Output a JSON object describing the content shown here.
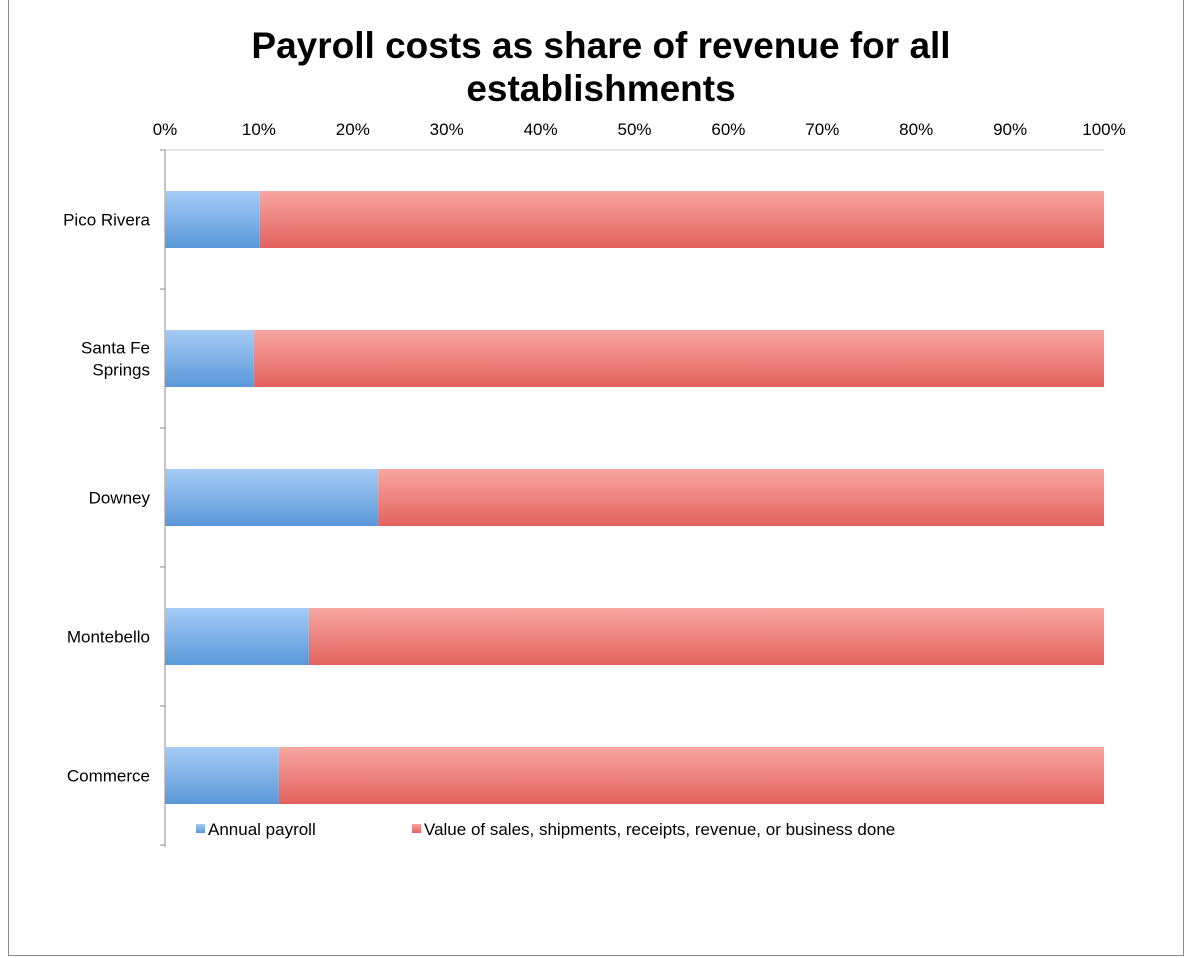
{
  "chart_data": {
    "type": "bar",
    "orientation": "horizontal",
    "stacking": "percent",
    "title_lines": [
      "Payroll costs as share of revenue for all",
      "establishments"
    ],
    "title": "Payroll costs as share of revenue for all establishments",
    "xlabel": "",
    "ylabel": "",
    "x_axis_position": "top",
    "xlim": [
      0,
      100
    ],
    "x_ticks": [
      "0%",
      "10%",
      "20%",
      "30%",
      "40%",
      "50%",
      "60%",
      "70%",
      "80%",
      "90%",
      "100%"
    ],
    "categories": [
      "Pico Rivera",
      "Santa Fe Springs",
      "Downey",
      "Montebello",
      "Commerce"
    ],
    "category_label_lines": [
      [
        "Pico Rivera"
      ],
      [
        "Santa Fe",
        "Springs"
      ],
      [
        "Downey"
      ],
      [
        "Montebello"
      ],
      [
        "Commerce"
      ]
    ],
    "series": [
      {
        "name": "Annual payroll",
        "values": [
          10.1,
          9.4,
          22.7,
          15.3,
          12.1
        ],
        "color": "#5b9bd5"
      },
      {
        "name": "Value of sales, shipments, receipts, revenue, or business done",
        "values": [
          89.9,
          90.6,
          77.3,
          84.7,
          87.9
        ],
        "color": "#e46c6a"
      }
    ],
    "grid": false,
    "legend_position": "bottom"
  }
}
